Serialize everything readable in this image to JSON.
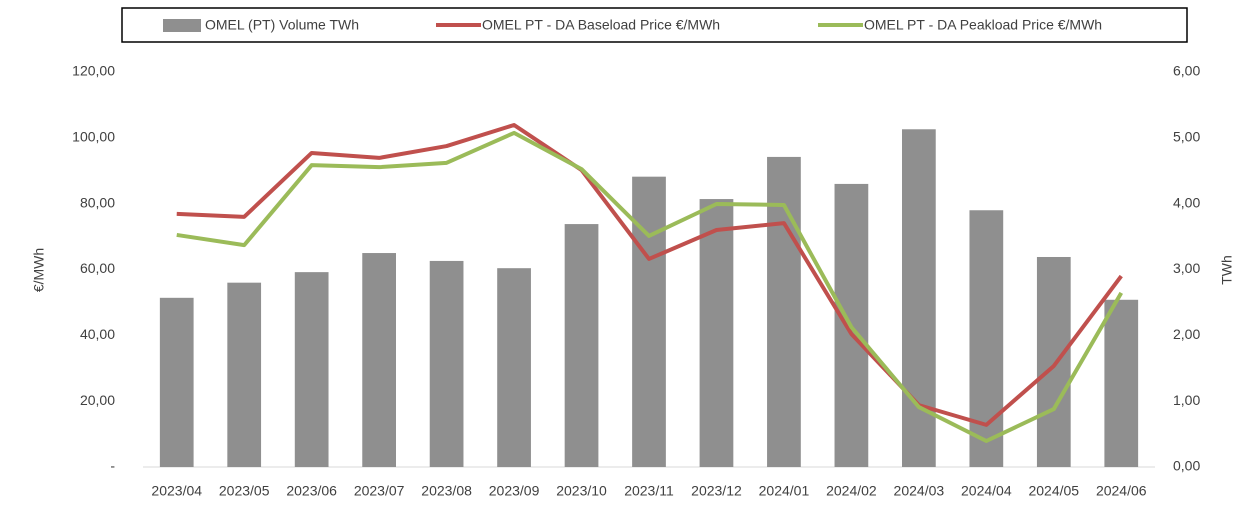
{
  "chart_data": {
    "type": "bar_line",
    "categories": [
      "2023/04",
      "2023/05",
      "2023/06",
      "2023/07",
      "2023/08",
      "2023/09",
      "2023/10",
      "2023/11",
      "2023/12",
      "2024/01",
      "2024/02",
      "2024/03",
      "2024/04",
      "2024/05",
      "2024/06"
    ],
    "series": [
      {
        "name": "OMEL (PT) Volume TWh",
        "color": "#8f8f8f",
        "kind": "bar",
        "axis": "y2",
        "values": [
          2.57,
          2.8,
          2.96,
          3.25,
          3.13,
          3.02,
          3.69,
          4.41,
          4.07,
          4.71,
          4.3,
          5.13,
          3.9,
          3.19,
          2.54
        ]
      },
      {
        "name": "OMEL PT - DA Baseload Price €/MWh",
        "color": "#c0504d",
        "kind": "line",
        "values": [
          76.9,
          76.0,
          95.4,
          93.9,
          97.5,
          103.9,
          90.2,
          63.2,
          72.0,
          74.1,
          40.4,
          18.8,
          12.8,
          30.7,
          58.0
        ]
      },
      {
        "name": "OMEL PT - DA Peakload Price  €/MWh",
        "color": "#9bbb59",
        "kind": "line",
        "values": [
          70.5,
          67.4,
          91.7,
          91.1,
          92.4,
          101.5,
          90.5,
          70.2,
          79.9,
          79.6,
          42.5,
          18.2,
          7.9,
          17.6,
          52.9
        ]
      }
    ],
    "ylabel": "€/MWh",
    "y2label": "TWh",
    "ylim": [
      0,
      120
    ],
    "yticks": [
      {
        "value": 0,
        "label": "-"
      },
      {
        "value": 20,
        "label": "20,00"
      },
      {
        "value": 40,
        "label": "40,00"
      },
      {
        "value": 60,
        "label": "60,00"
      },
      {
        "value": 80,
        "label": "80,00"
      },
      {
        "value": 100,
        "label": "100,00"
      },
      {
        "value": 120,
        "label": "120,00"
      }
    ],
    "y2lim": [
      0,
      6
    ],
    "y2ticks": [
      {
        "value": 0,
        "label": "0,00"
      },
      {
        "value": 1,
        "label": "1,00"
      },
      {
        "value": 2,
        "label": "2,00"
      },
      {
        "value": 3,
        "label": "3,00"
      },
      {
        "value": 4,
        "label": "4,00"
      },
      {
        "value": 5,
        "label": "5,00"
      },
      {
        "value": 6,
        "label": "6,00"
      }
    ],
    "legend": "top"
  }
}
